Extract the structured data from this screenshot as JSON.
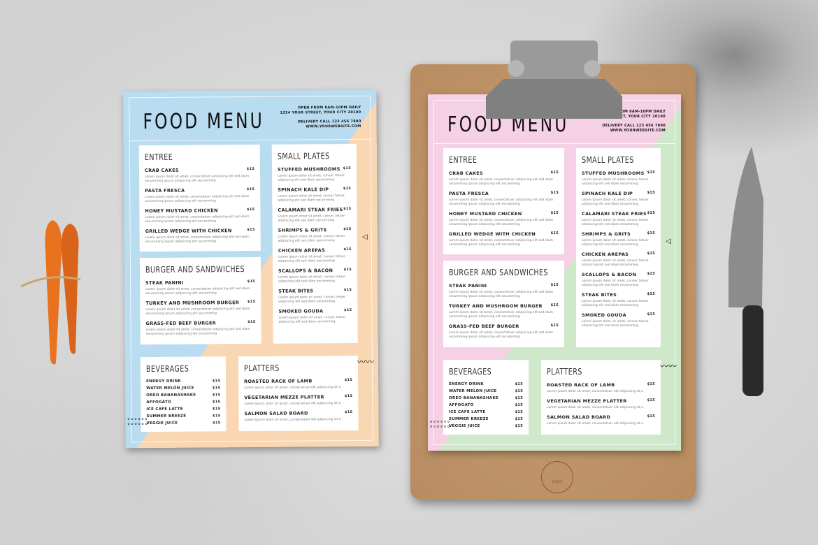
{
  "menu": {
    "title": "FOOD MENU",
    "hours": "OPEN FROM 8AM-10PM DAILY",
    "address": "1234 YOUR STREET, YOUR CITY 20100",
    "delivery": "DELIVERY CALL 123 456 7890",
    "website": "WWW.YOURWEBSITE.COM",
    "desc_long": "Lorem ipsum dolor sit amet, consectetuer adipiscing elit sed diam secumming ipsum adipiscing elit secumming",
    "desc_short": "Lorem ipsum dolor sit amet, consec tetuer adipiscing elit sed diam secumming",
    "desc_line": "Lorem ipsum dolor sit amet, consectetuer elit adipiscing sit a",
    "entree": {
      "heading": "ENTREE",
      "items": [
        {
          "name": "CRAB CAKES",
          "price": "$15"
        },
        {
          "name": "PASTA FRESCA",
          "price": "$15"
        },
        {
          "name": "HONEY MUSTARD CHICKEN",
          "price": "$15"
        },
        {
          "name": "GRILLED WEDGE WITH CHICKEN",
          "price": "$15"
        }
      ]
    },
    "burgers": {
      "heading": "BURGER AND SANDWICHES",
      "items": [
        {
          "name": "STEAK PANINI",
          "price": "$15"
        },
        {
          "name": "TURKEY AND MUSHROOM BURGER",
          "price": "$15"
        },
        {
          "name": "GRASS-FED BEEF BURGER",
          "price": "$15"
        }
      ]
    },
    "small_plates": {
      "heading": "SMALL PLATES",
      "items": [
        {
          "name": "STUFFED MUSHROOMS",
          "price": "$15"
        },
        {
          "name": "SPINACH KALE DIP",
          "price": "$15"
        },
        {
          "name": "CALAMARI STEAK FRIES",
          "price": "$15"
        },
        {
          "name": "SHRIMPS & GRITS",
          "price": "$15"
        },
        {
          "name": "CHICKEN AREPAS",
          "price": "$15"
        },
        {
          "name": "SCALLOPS & BACON",
          "price": "$15"
        },
        {
          "name": "STEAK BITES",
          "price": "$15"
        },
        {
          "name": "SMOKED GOUDA",
          "price": "$15"
        }
      ]
    },
    "beverages": {
      "heading": "BEVERAGES",
      "items": [
        {
          "name": "ENERGY DRINK",
          "price": "$15"
        },
        {
          "name": "WATER MELON JUICE",
          "price": "$15"
        },
        {
          "name": "OREO BANANASHAKE",
          "price": "$15"
        },
        {
          "name": "AFFOGATO",
          "price": "$15"
        },
        {
          "name": "ICE CAFE LATTE",
          "price": "$15"
        },
        {
          "name": "SUMMER BREEZE",
          "price": "$15"
        },
        {
          "name": "VEGGIE JUICE",
          "price": "$15"
        }
      ]
    },
    "platters": {
      "heading": "PLATTERS",
      "items": [
        {
          "name": "ROASTED RACK OF LAMB",
          "price": "$15"
        },
        {
          "name": "VEGETARIAN MEZZE PLATTER",
          "price": "$15"
        },
        {
          "name": "SALMON SALAD BOARD",
          "price": "$15"
        }
      ]
    }
  },
  "sheets": [
    {
      "variant": "blue-peach",
      "color_a": "#b9dcf1",
      "color_b": "#f8d7b2"
    },
    {
      "variant": "pink-green",
      "color_a": "#f6d0e4",
      "color_b": "#cfe8ca"
    }
  ],
  "clipboard": {
    "logo_text": "LOGO",
    "logo_icon": "fork-knife-icon"
  }
}
